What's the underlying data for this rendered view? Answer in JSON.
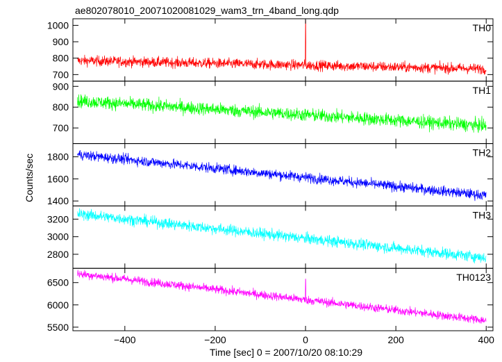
{
  "title": "ae802078010_20071020081029_wam3_trn_4band_long.qdp",
  "xlabel": "Time [sec] 0 = 2007/10/20 08:10:29",
  "ylabel": "Counts/sec",
  "chart_data": {
    "type": "line",
    "title": "ae802078010_20071020081029_wam3_trn_4band_long.qdp",
    "xlabel": "Time [sec] 0 = 2007/10/20 08:10:29",
    "ylabel": "Counts/sec",
    "xlim": [
      -515,
      415
    ],
    "xticks": [
      -400,
      -200,
      0,
      200,
      400
    ],
    "grid": false,
    "panels": [
      {
        "name": "TH0",
        "color": "#ff0000",
        "ylim": [
          660,
          1040
        ],
        "yticks": [
          700,
          800,
          900,
          1000
        ],
        "trend": {
          "x": [
            -505,
            400
          ],
          "y": [
            785,
            735
          ]
        },
        "noise_amplitude": 55,
        "features": [
          {
            "x": 0,
            "y": 1030,
            "type": "spike"
          }
        ]
      },
      {
        "name": "TH1",
        "color": "#00ff00",
        "ylim": [
          625,
          925
        ],
        "yticks": [
          700,
          800,
          900
        ],
        "trend": {
          "x": [
            -505,
            400
          ],
          "y": [
            830,
            710
          ]
        },
        "noise_amplitude": 55,
        "features": []
      },
      {
        "name": "TH2",
        "color": "#0000ff",
        "ylim": [
          1355,
          1920
        ],
        "yticks": [
          1400,
          1600,
          1800
        ],
        "trend": {
          "x": [
            -505,
            400
          ],
          "y": [
            1820,
            1450
          ]
        },
        "noise_amplitude": 80,
        "features": []
      },
      {
        "name": "TH3",
        "color": "#00ffff",
        "ylim": [
          2640,
          3350
        ],
        "yticks": [
          2800,
          3000,
          3200
        ],
        "trend": {
          "x": [
            -505,
            400
          ],
          "y": [
            3260,
            2760
          ]
        },
        "noise_amplitude": 110,
        "features": []
      },
      {
        "name": "TH0123",
        "color": "#ff00ff",
        "ylim": [
          5420,
          6820
        ],
        "yticks": [
          5500,
          6000,
          6500
        ],
        "trend": {
          "x": [
            -505,
            400
          ],
          "y": [
            6700,
            5650
          ]
        },
        "noise_amplitude": 170,
        "features": [
          {
            "x": 0,
            "y": 6580,
            "type": "spike"
          }
        ]
      }
    ]
  }
}
